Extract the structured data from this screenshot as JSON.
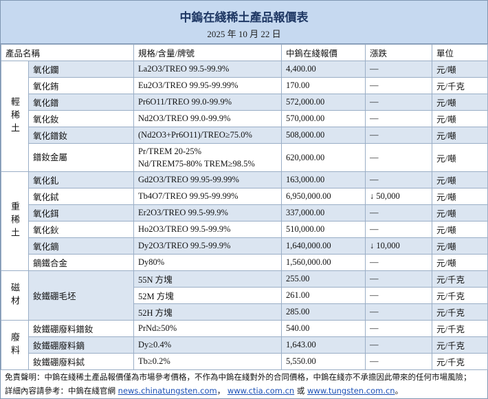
{
  "header": {
    "title": "中鎢在綫稀土產品報價表",
    "date": "2025 年 10 月 22 日"
  },
  "table": {
    "columns": [
      "產品名稱",
      "規格/含量/牌號",
      "中鎢在綫報價",
      "漲跌",
      "單位"
    ],
    "groups": [
      {
        "label": "輕稀土",
        "rows": [
          {
            "name": "氧化鑭",
            "spec": "La2O3/TREO 99.5-99.9%",
            "price": "4,400.00",
            "change": "—",
            "unit": "元/噸"
          },
          {
            "name": "氧化銪",
            "spec": "Eu2O3/TREO 99.95-99.99%",
            "price": "170.00",
            "change": "—",
            "unit": "元/千克"
          },
          {
            "name": "氧化鐠",
            "spec": "Pr6O11/TREO 99.0-99.9%",
            "price": "572,000.00",
            "change": "—",
            "unit": "元/噸"
          },
          {
            "name": "氧化釹",
            "spec": "Nd2O3/TREO 99.0-99.9%",
            "price": "570,000.00",
            "change": "—",
            "unit": "元/噸"
          },
          {
            "name": "氧化鐠釹",
            "spec": "(Nd2O3+Pr6O11)/TREO≥75.0%",
            "price": "508,000.00",
            "change": "—",
            "unit": "元/噸"
          },
          {
            "name": "鐠釹金屬",
            "spec": [
              "Pr/TREM 20-25%",
              "Nd/TREM75-80% TREM≥98.5%"
            ],
            "price": "620,000.00",
            "change": "—",
            "unit": "元/噸"
          }
        ]
      },
      {
        "label": "重稀土",
        "rows": [
          {
            "name": "氧化釓",
            "spec": "Gd2O3/TREO 99.95-99.99%",
            "price": "163,000.00",
            "change": "—",
            "unit": "元/噸"
          },
          {
            "name": "氧化鋱",
            "spec": "Tb4O7/TREO 99.95-99.99%",
            "price": "6,950,000.00",
            "change": "↓ 50,000",
            "unit": "元/噸"
          },
          {
            "name": "氧化鉺",
            "spec": "Er2O3/TREO 99.5-99.9%",
            "price": "337,000.00",
            "change": "—",
            "unit": "元/噸"
          },
          {
            "name": "氧化鈥",
            "spec": "Ho2O3/TREO 99.5-99.9%",
            "price": "510,000.00",
            "change": "—",
            "unit": "元/噸"
          },
          {
            "name": "氧化鏑",
            "spec": "Dy2O3/TREO 99.5-99.9%",
            "price": "1,640,000.00",
            "change": "↓ 10,000",
            "unit": "元/噸"
          },
          {
            "name": "鏑鐵合金",
            "spec": "Dy80%",
            "price": "1,560,000.00",
            "change": "—",
            "unit": "元/噸"
          }
        ]
      },
      {
        "label": "磁材",
        "rows": [
          {
            "name": "釹鐵硼毛坯",
            "spec": "55N 方塊",
            "price": "255.00",
            "change": "—",
            "unit": "元/千克"
          },
          {
            "name": null,
            "spec": "52M 方塊",
            "price": "261.00",
            "change": "—",
            "unit": "元/千克"
          },
          {
            "name": null,
            "spec": "52H 方塊",
            "price": "285.00",
            "change": "—",
            "unit": "元/千克"
          }
        ]
      },
      {
        "label": "廢料",
        "rows": [
          {
            "name": "釹鐵硼廢料鐠釹",
            "spec": "PrNd≥50%",
            "price": "540.00",
            "change": "—",
            "unit": "元/千克"
          },
          {
            "name": "釹鐵硼廢料鏑",
            "spec": "Dy≥0.4%",
            "price": "1,643.00",
            "change": "—",
            "unit": "元/千克"
          },
          {
            "name": "釹鐵硼廢料鋱",
            "spec": "Tb≥0.2%",
            "price": "5,550.00",
            "change": "—",
            "unit": "元/千克"
          }
        ]
      }
    ]
  },
  "footer": {
    "disclaimer": "免責聲明：中鎢在綫稀土產品報價僅為市場參考價格，不作為中鎢在綫對外的合同價格，中鎢在綫亦不承擔因此帶來的任何市場風險；",
    "reference_label": "詳細內容請參考：中鎢在綫官網",
    "links": [
      "news.chinatungsten.com",
      "www.ctia.com.cn",
      "www.tungsten.com.cn"
    ],
    "separators": [
      "，",
      "或",
      "。"
    ]
  }
}
